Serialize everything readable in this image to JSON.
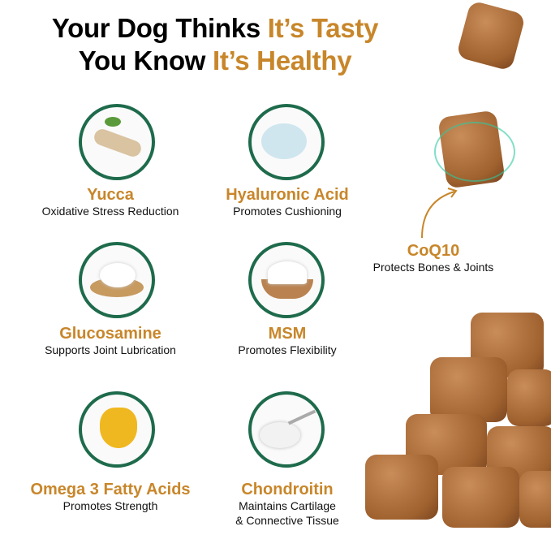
{
  "headline": {
    "line1_black": "Your Dog Thinks",
    "line1_orange": "It’s Tasty",
    "line2_black": "You Know",
    "line2_orange": "It’s Healthy"
  },
  "colors": {
    "accent": "#c8862a",
    "ring": "#1e6b4c",
    "text": "#111111"
  },
  "ingredients": [
    {
      "title": "Yucca",
      "subtitle": "Oxidative Stress Reduction",
      "icon": "yucca-root-icon"
    },
    {
      "title": "Hyaluronic Acid",
      "subtitle": "Promotes Cushioning",
      "icon": "serum-dropper-icon"
    },
    {
      "title": "Glucosamine",
      "subtitle": "Supports Joint Lubrication",
      "icon": "powder-spoon-icon"
    },
    {
      "title": "MSM",
      "subtitle": "Promotes Flexibility",
      "icon": "powder-bowl-icon"
    },
    {
      "title": "Omega 3 Fatty Acids",
      "subtitle": "Promotes Strength",
      "icon": "oil-heart-icon"
    },
    {
      "title": "Chondroitin",
      "subtitle": "Maintains Cartilage",
      "subtitle2": "& Connective Tissue",
      "icon": "powder-spoon-icon"
    }
  ],
  "coq10": {
    "title": "CoQ10",
    "subtitle": "Protects Bones & Joints"
  }
}
